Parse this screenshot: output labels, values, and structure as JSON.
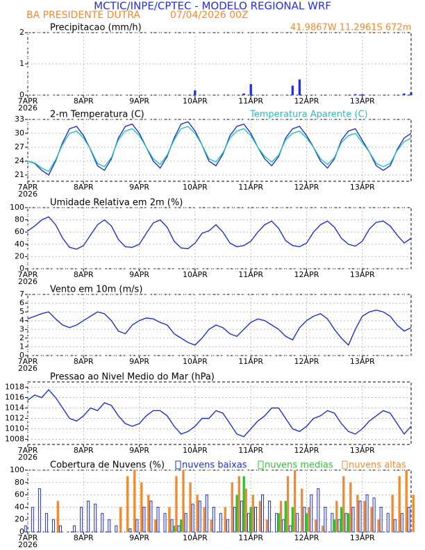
{
  "header": {
    "title": "MCTIC/INPE/CPTEC - MODELO REGIONAL WRF",
    "location": "BA PRESIDENTE DUTRA",
    "datetime": "07/04/2026 00Z",
    "coords": "41.9867W 11.2961S 672m"
  },
  "x": [
    0,
    3,
    6,
    9,
    12,
    15,
    18,
    21,
    24,
    27,
    30,
    33,
    36,
    39,
    42,
    45,
    48,
    51,
    54,
    57,
    60,
    63,
    66,
    69,
    72,
    75,
    78,
    81,
    84,
    87,
    90,
    93,
    96,
    99,
    102,
    105,
    108,
    111,
    114,
    117,
    120,
    123,
    126,
    129,
    132,
    135,
    138,
    141,
    144,
    147,
    150,
    153,
    156,
    159,
    162,
    165
  ],
  "xlim": [
    0,
    165
  ],
  "xticks": [
    {
      "value": 0,
      "label": "7APR"
    },
    {
      "value": 24,
      "label": "8APR"
    },
    {
      "value": 48,
      "label": "9APR"
    },
    {
      "value": 72,
      "label": "10APR"
    },
    {
      "value": 96,
      "label": "11APR"
    },
    {
      "value": 120,
      "label": "12APR"
    },
    {
      "value": 144,
      "label": "13APR"
    }
  ],
  "x_year": "2026",
  "chart_data": [
    {
      "type": "bar",
      "title": "Precipitacao (mm/h)",
      "ylim": [
        0,
        2
      ],
      "yticks": [
        0,
        1,
        2
      ],
      "series": [
        {
          "color": "#2030e0",
          "values": [
            0,
            0,
            0,
            0,
            0,
            0,
            0,
            0,
            0,
            0,
            0,
            0,
            0,
            0,
            0,
            0,
            0,
            0,
            0,
            0,
            0,
            0,
            0,
            0,
            0.15,
            0,
            0,
            0,
            0,
            0,
            0,
            0.05,
            0.35,
            0,
            0,
            0,
            0,
            0,
            0.3,
            0.5,
            0,
            0,
            0,
            0,
            0,
            0,
            0,
            0.03,
            0.03,
            0,
            0,
            0,
            0,
            0,
            0.05,
            0.08
          ]
        }
      ]
    },
    {
      "type": "line",
      "title": "2-m Temperatura (C)",
      "ylim": [
        19.65,
        33
      ],
      "yticks": [
        21,
        24,
        27,
        30,
        33
      ],
      "series": [
        {
          "color": "#1c2fd0",
          "values": [
            24,
            23.5,
            22,
            21,
            24,
            28,
            31,
            31.5,
            29.5,
            26.5,
            23,
            22,
            24.5,
            29,
            31.5,
            32,
            30,
            27,
            24,
            22.5,
            25,
            29,
            32,
            32.5,
            30.5,
            27.5,
            24,
            23,
            25.5,
            29.5,
            31.5,
            32,
            30,
            27,
            24.5,
            23,
            25,
            29,
            31,
            31.5,
            29.5,
            27,
            24,
            22.5,
            24.5,
            28.5,
            30.5,
            31,
            28.5,
            26,
            23,
            22,
            23,
            26.5,
            29,
            30
          ]
        },
        {
          "name": "Temperatura Aparente (C)",
          "color": "#20c0c0",
          "values": [
            24,
            23.6,
            22.5,
            21.8,
            24.3,
            27.6,
            30,
            30.5,
            29,
            26.6,
            23.5,
            22.8,
            24.8,
            28.6,
            30.5,
            31,
            29.5,
            27,
            24.5,
            23.3,
            25.3,
            28.6,
            31,
            31.5,
            30,
            27.5,
            24.5,
            23.8,
            25.8,
            29,
            30.5,
            31,
            29.5,
            27,
            25,
            23.8,
            25.3,
            28.6,
            30,
            30.5,
            29,
            27,
            24.5,
            23.3,
            24.8,
            28,
            29.5,
            30,
            28,
            26,
            23.5,
            22.8,
            23.5,
            26.3,
            28.2,
            29
          ]
        }
      ]
    },
    {
      "type": "line",
      "title": "Umidade Relativa em 2m (%)",
      "ylim": [
        0,
        100
      ],
      "yticks": [
        0,
        20,
        40,
        60,
        80,
        100
      ],
      "series": [
        {
          "color": "#1c2fd0",
          "values": [
            62,
            70,
            80,
            85,
            72,
            50,
            35,
            32,
            38,
            55,
            72,
            80,
            70,
            48,
            36,
            35,
            40,
            58,
            75,
            80,
            68,
            45,
            34,
            33,
            42,
            58,
            62,
            72,
            60,
            42,
            36,
            38,
            45,
            60,
            72,
            78,
            66,
            46,
            38,
            36,
            42,
            60,
            72,
            78,
            68,
            50,
            40,
            37,
            45,
            65,
            76,
            78,
            70,
            55,
            42,
            50
          ]
        }
      ]
    },
    {
      "type": "line",
      "title": "Vento em 10m (m/s)",
      "ylim": [
        0,
        7
      ],
      "yticks": [
        0,
        1,
        2,
        3,
        4,
        5,
        6,
        7
      ],
      "series": [
        {
          "color": "#1c2fd0",
          "values": [
            4.2,
            4.5,
            4.8,
            5,
            4.2,
            3.5,
            3.2,
            3.5,
            4,
            4.5,
            5,
            4.8,
            4,
            2.8,
            2.5,
            3.5,
            4,
            4.3,
            4.2,
            3.8,
            3.5,
            2.5,
            2,
            1.5,
            1.2,
            2,
            3,
            3.5,
            3.2,
            2.5,
            2.2,
            3,
            3.8,
            4.2,
            4,
            3.5,
            3,
            2.2,
            1.8,
            3.2,
            4,
            4.5,
            4.8,
            4.2,
            3,
            2,
            1.2,
            3,
            4.5,
            5,
            5.2,
            5,
            4.5,
            3.5,
            2.8,
            3.2
          ]
        }
      ]
    },
    {
      "type": "line",
      "title": "Pressao ao Nivel Medio do Mar (hPa)",
      "ylim": [
        1007,
        1019
      ],
      "yticks": [
        1008,
        1010,
        1012,
        1014,
        1016,
        1018
      ],
      "series": [
        {
          "color": "#1c2fd0",
          "values": [
            1015.5,
            1016.5,
            1016,
            1017.5,
            1016,
            1014,
            1012,
            1011.5,
            1012.5,
            1014,
            1013.5,
            1015,
            1014.5,
            1012.5,
            1011,
            1010.5,
            1011,
            1012.5,
            1013.5,
            1013.5,
            1012.5,
            1010.5,
            1009,
            1009.5,
            1010.5,
            1012,
            1012,
            1013.5,
            1013,
            1011,
            1009,
            1008.5,
            1010,
            1011.5,
            1012.5,
            1014,
            1014,
            1012,
            1010,
            1009.5,
            1010.5,
            1012,
            1012.5,
            1013.5,
            1013,
            1011,
            1009.5,
            1009,
            1010,
            1011.5,
            1012.5,
            1013.5,
            1013,
            1011,
            1009,
            1010.5
          ]
        }
      ]
    },
    {
      "type": "bar",
      "title": "Cobertura de Nuvens (%)",
      "ylim": [
        0,
        100
      ],
      "yticks": [
        0,
        20,
        40,
        60,
        80,
        100
      ],
      "series": [
        {
          "name": "nuvens baixas",
          "color": "#1c2fd0",
          "values": [
            10,
            40,
            70,
            30,
            20,
            10,
            0,
            10,
            40,
            50,
            45,
            30,
            20,
            10,
            0,
            5,
            20,
            40,
            50,
            40,
            30,
            20,
            10,
            30,
            45,
            50,
            60,
            40,
            30,
            20,
            40,
            50,
            30,
            40,
            60,
            50,
            30,
            20,
            10,
            30,
            40,
            60,
            70,
            40,
            30,
            20,
            30,
            40,
            50,
            60,
            55,
            40,
            30,
            20,
            30,
            40
          ]
        },
        {
          "name": "nuvens medias",
          "color": "#30c030",
          "values": [
            0,
            0,
            0,
            0,
            0,
            0,
            0,
            0,
            0,
            0,
            0,
            0,
            0,
            0,
            0,
            0,
            0,
            0,
            0,
            0,
            0,
            10,
            20,
            0,
            0,
            0,
            0,
            0,
            0,
            0,
            60,
            90,
            40,
            0,
            0,
            0,
            30,
            50,
            40,
            0,
            30,
            0,
            0,
            0,
            20,
            40,
            30,
            0,
            0,
            0,
            0,
            0,
            0,
            0,
            0,
            0
          ]
        },
        {
          "name": "nuvens altas",
          "color": "#f08a30",
          "values": [
            0,
            0,
            0,
            0,
            50,
            0,
            0,
            0,
            0,
            0,
            0,
            0,
            0,
            40,
            90,
            100,
            80,
            60,
            20,
            0,
            40,
            90,
            100,
            80,
            60,
            40,
            20,
            0,
            40,
            80,
            90,
            70,
            60,
            50,
            20,
            0,
            50,
            90,
            100,
            70,
            40,
            20,
            10,
            0,
            50,
            90,
            80,
            60,
            50,
            40,
            20,
            0,
            60,
            90,
            100,
            60
          ]
        }
      ]
    }
  ]
}
